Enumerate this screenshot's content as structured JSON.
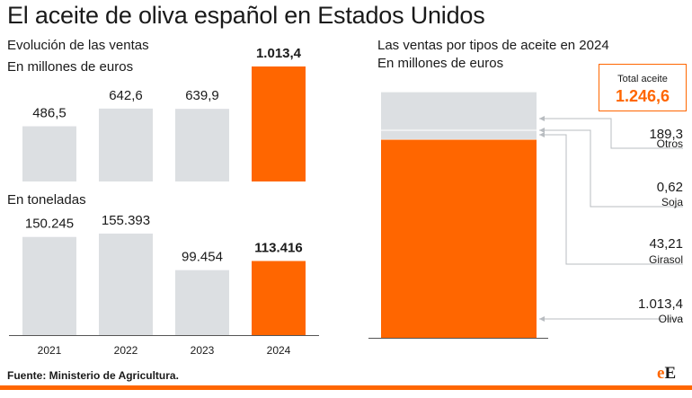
{
  "title": "El aceite de oliva español en Estados Unidos",
  "left": {
    "subtitle": "Evolución de las ventas",
    "sales_unit": "En millones de euros",
    "tons_unit": "En toneladas"
  },
  "right": {
    "subtitle": "Las ventas por tipos de aceite en 2024",
    "unit": "En millones de euros",
    "total_label": "Total aceite",
    "total_value": "1.246,6"
  },
  "footer": {
    "source": "Fuente: Ministerio de Agricultura."
  },
  "brand": {
    "e1": "e",
    "e2": "E"
  },
  "colors": {
    "highlight": "#ff6600",
    "neutral": "#dcdfe2",
    "leader": "#b8bcc0"
  },
  "chart_data": [
    {
      "type": "bar",
      "categories": [
        "2021",
        "2022",
        "2023",
        "2024"
      ],
      "values": [
        486.5,
        642.6,
        639.9,
        1013.4
      ],
      "labels": [
        "486,5",
        "642,6",
        "639,9",
        "1.013,4"
      ],
      "highlight_index": 3,
      "ylim": [
        0,
        1013.4
      ]
    },
    {
      "type": "bar",
      "categories": [
        "2021",
        "2022",
        "2023",
        "2024"
      ],
      "values": [
        150245,
        155393,
        99454,
        113416
      ],
      "labels": [
        "150.245",
        "155.393",
        "99.454",
        "113.416"
      ],
      "highlight_index": 3,
      "ylim": [
        0,
        155393
      ]
    },
    {
      "type": "bar",
      "stacked": true,
      "categories": [
        "Oliva",
        "Girasol",
        "Soja",
        "Otros"
      ],
      "values": [
        1013.4,
        43.21,
        0.62,
        189.3
      ],
      "labels": [
        "1.013,4",
        "43,21",
        "0,62",
        "189,3"
      ],
      "total": 1246.6
    }
  ]
}
